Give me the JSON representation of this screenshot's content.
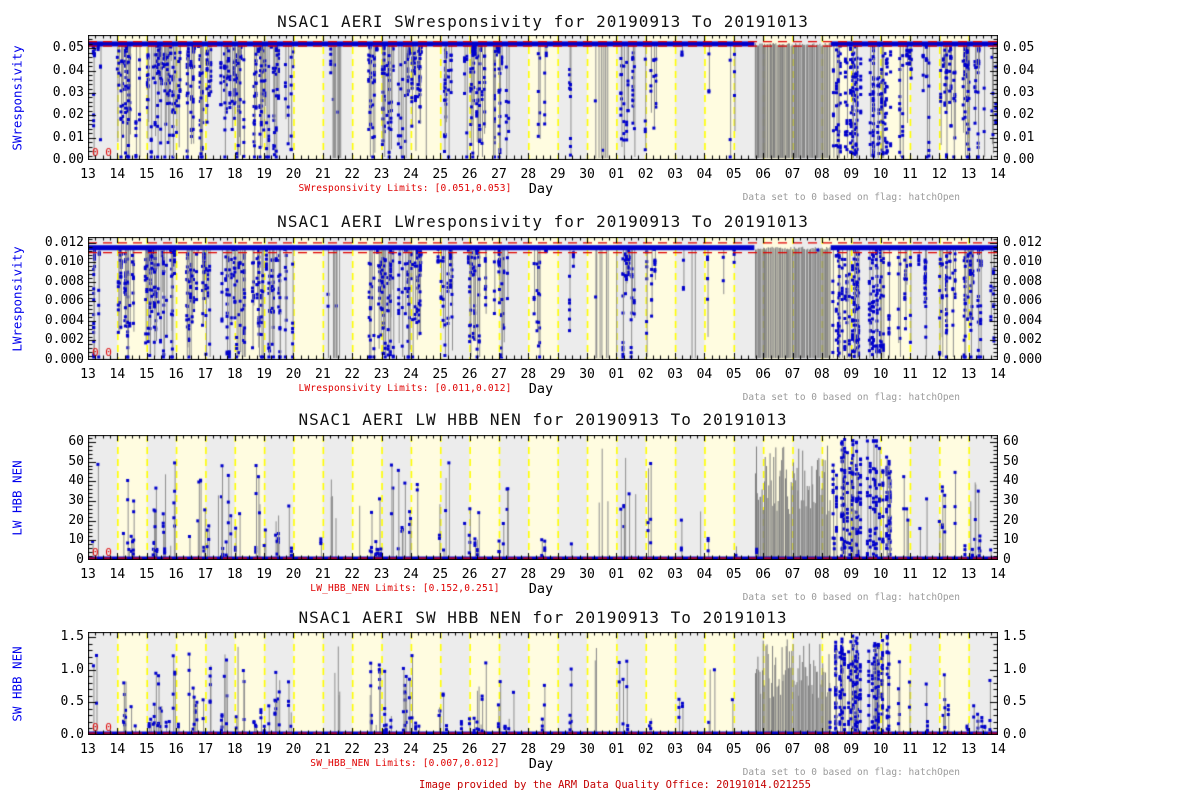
{
  "figure": {
    "credit": "Image provided by the ARM Data Quality Office: 20191014.021255",
    "flag_note": "Data set to 0 based on flag: hatchOpen",
    "x_axis_title": "Day",
    "flag_zero_marks": "0 0"
  },
  "colors": {
    "marker_blue": "#0000CC",
    "axis_label_blue": "#0000EE",
    "limit_red": "#DF0000",
    "credit_red": "#C40000",
    "note_gray": "#9A9A9A",
    "spike_gray": "#8F8F8F",
    "dense_gray": "#7E7E7E",
    "band_yellow": "#FFFCE0",
    "band_gray": "#ECECEC",
    "dayline_yellow": "#FFFF00",
    "tick_black": "#000000"
  },
  "chart_data": {
    "type": "multi-panel timeseries (scatter with drop lines)",
    "xlabel": "Day",
    "x_range_dates": [
      "20190913",
      "20191013"
    ],
    "x_tick_labels": [
      "13",
      "14",
      "15",
      "16",
      "17",
      "18",
      "19",
      "20",
      "21",
      "22",
      "23",
      "24",
      "25",
      "26",
      "27",
      "28",
      "29",
      "30",
      "01",
      "02",
      "03",
      "04",
      "05",
      "06",
      "07",
      "08",
      "09",
      "10",
      "11",
      "12",
      "13",
      "14"
    ],
    "days_total": 31,
    "grid": "alternating daily bands with yellow dashed day lines",
    "flagged_note": "Data set to 0 based on flag: hatchOpen",
    "activity_segments": [
      {
        "start_day": 0.15,
        "end_day": 0.45,
        "type": "blue",
        "density": 0.55
      },
      {
        "start_day": 1.0,
        "end_day": 1.65,
        "type": "blue",
        "density": 0.85
      },
      {
        "start_day": 1.95,
        "end_day": 3.15,
        "type": "blue",
        "density": 0.9
      },
      {
        "start_day": 3.35,
        "end_day": 4.2,
        "type": "blue",
        "density": 0.75
      },
      {
        "start_day": 4.5,
        "end_day": 5.35,
        "type": "blue",
        "density": 0.8
      },
      {
        "start_day": 5.6,
        "end_day": 6.55,
        "type": "blue",
        "density": 0.85
      },
      {
        "start_day": 6.7,
        "end_day": 7.0,
        "type": "blue",
        "density": 0.4
      },
      {
        "start_day": 8.15,
        "end_day": 8.6,
        "type": "gray",
        "density": 0.75
      },
      {
        "start_day": 9.55,
        "end_day": 10.4,
        "type": "blue",
        "density": 0.85
      },
      {
        "start_day": 10.55,
        "end_day": 11.35,
        "type": "blue",
        "density": 0.85
      },
      {
        "start_day": 11.95,
        "end_day": 12.45,
        "type": "blue",
        "density": 0.55
      },
      {
        "start_day": 12.9,
        "end_day": 13.55,
        "type": "blue",
        "density": 0.75
      },
      {
        "start_day": 13.8,
        "end_day": 14.35,
        "type": "blue",
        "density": 0.6
      },
      {
        "start_day": 15.25,
        "end_day": 15.65,
        "type": "blue",
        "density": 0.3
      },
      {
        "start_day": 16.35,
        "end_day": 16.6,
        "type": "blue",
        "density": 0.25
      },
      {
        "start_day": 17.25,
        "end_day": 17.75,
        "type": "gray",
        "density": 0.45
      },
      {
        "start_day": 18.05,
        "end_day": 18.65,
        "type": "blue",
        "density": 0.5
      },
      {
        "start_day": 18.95,
        "end_day": 19.35,
        "type": "blue",
        "density": 0.35
      },
      {
        "start_day": 20.15,
        "end_day": 20.35,
        "type": "blue",
        "density": 0.2
      },
      {
        "start_day": 21.05,
        "end_day": 21.25,
        "type": "blue",
        "density": 0.15
      },
      {
        "start_day": 21.95,
        "end_day": 22.15,
        "type": "blue",
        "density": 0.15
      },
      {
        "start_day": 22.7,
        "end_day": 25.3,
        "type": "grayDense",
        "density": 1.0
      },
      {
        "start_day": 25.35,
        "end_day": 26.35,
        "type": "blueDense",
        "density": 1.0
      },
      {
        "start_day": 26.55,
        "end_day": 27.35,
        "type": "blueDense",
        "density": 0.9
      },
      {
        "start_day": 27.6,
        "end_day": 28.05,
        "type": "blue",
        "density": 0.5
      },
      {
        "start_day": 28.3,
        "end_day": 28.65,
        "type": "blue",
        "density": 0.45
      },
      {
        "start_day": 29.0,
        "end_day": 29.55,
        "type": "blue",
        "density": 0.65
      },
      {
        "start_day": 29.8,
        "end_day": 30.55,
        "type": "blue",
        "density": 0.75
      },
      {
        "start_day": 30.7,
        "end_day": 30.95,
        "type": "blue",
        "density": 0.35
      }
    ],
    "panels": [
      {
        "title": "NSAC1 AERI SWresponsivity for 20190913 To 20191013",
        "ylabel": "SWresponsivity",
        "ytick_labels": [
          "0.00",
          "0.01",
          "0.02",
          "0.03",
          "0.04",
          "0.05"
        ],
        "ytick_values": [
          0,
          0.01,
          0.02,
          0.03,
          0.04,
          0.05
        ],
        "ymax": 0.056,
        "minor_step": 0.002,
        "baseline_value": 0.052,
        "limits": [
          0.051,
          0.053
        ],
        "limit_label": "SWresponsivity Limits: [0.051,0.053]",
        "direction": "down"
      },
      {
        "title": "NSAC1 AERI LWresponsivity for 20190913 To 20191013",
        "ylabel": "LWresponsivity",
        "ytick_labels": [
          "0.000",
          "0.002",
          "0.004",
          "0.006",
          "0.008",
          "0.010",
          "0.012"
        ],
        "ytick_values": [
          0,
          0.002,
          0.004,
          0.006,
          0.008,
          0.01,
          0.012
        ],
        "ymax": 0.0126,
        "minor_step": 0.0004,
        "baseline_value": 0.0115,
        "limits": [
          0.011,
          0.012
        ],
        "limit_label": "LWresponsivity Limits: [0.011,0.012]",
        "direction": "down"
      },
      {
        "title": "NSAC1 AERI LW HBB NEN for 20190913 To 20191013",
        "ylabel": "LW HBB NEN",
        "ytick_labels": [
          "0",
          "10",
          "20",
          "30",
          "40",
          "50",
          "60"
        ],
        "ytick_values": [
          0,
          10,
          20,
          30,
          40,
          50,
          60
        ],
        "ymax": 63.5,
        "minor_step": 2,
        "baseline_value": 0,
        "limits": [
          0.152,
          0.251
        ],
        "limit_label": "LW_HBB_NEN Limits: [0.152,0.251]",
        "direction": "up"
      },
      {
        "title": "NSAC1 AERI SW HBB NEN for 20190913 To 20191013",
        "ylabel": "SW HBB NEN",
        "ytick_labels": [
          "0.0",
          "0.5",
          "1.0",
          "1.5"
        ],
        "ytick_values": [
          0,
          0.5,
          1.0,
          1.5
        ],
        "ymax": 1.58,
        "minor_step": 0.1,
        "baseline_value": 0,
        "limits": [
          0.007,
          0.012
        ],
        "limit_label": "SW_HBB_NEN Limits: [0.007,0.012]",
        "direction": "up"
      }
    ]
  }
}
